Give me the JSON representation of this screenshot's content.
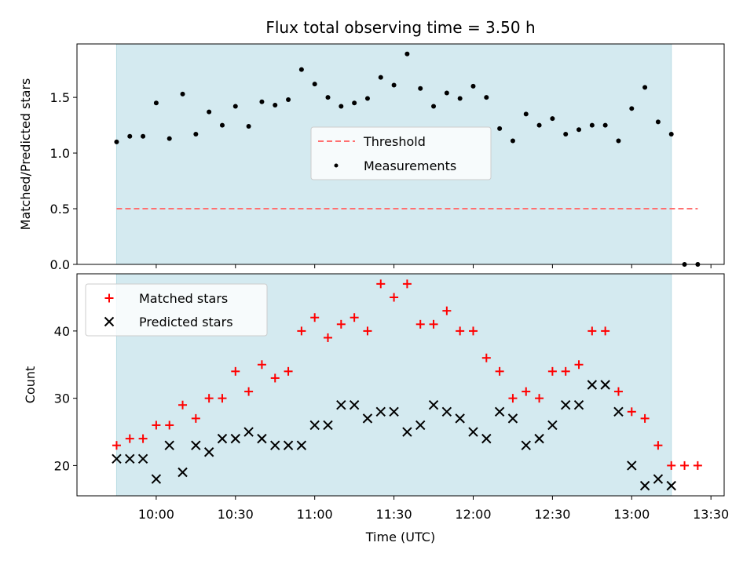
{
  "chart_data": [
    {
      "type": "scatter",
      "title": "Flux total observing time = 3.50 h",
      "ylabel": "Matched/Predicted stars",
      "xlabel": "",
      "ylim": [
        0,
        1.98
      ],
      "yticks": [
        "0.0",
        "0.5",
        "1.0",
        "1.5"
      ],
      "yticks_values": [
        0,
        0.5,
        1.0,
        1.5
      ],
      "grid": false,
      "legend_position": "center",
      "shaded_span": {
        "from": "09:45",
        "to": "13:15",
        "color": "#d4eaf0"
      },
      "series": [
        {
          "name": "Threshold",
          "kind": "dashed-line",
          "color": "#ff7070",
          "x": [
            "09:45",
            "13:25"
          ],
          "y": [
            0.5,
            0.5
          ]
        },
        {
          "name": "Measurements",
          "kind": "points",
          "color": "#000000",
          "x": [
            "09:45",
            "09:50",
            "09:55",
            "10:00",
            "10:05",
            "10:10",
            "10:15",
            "10:20",
            "10:25",
            "10:30",
            "10:35",
            "10:40",
            "10:45",
            "10:50",
            "10:55",
            "11:00",
            "11:05",
            "11:10",
            "11:15",
            "11:20",
            "11:25",
            "11:30",
            "11:35",
            "11:40",
            "11:45",
            "11:50",
            "11:55",
            "12:00",
            "12:05",
            "12:10",
            "12:15",
            "12:20",
            "12:25",
            "12:30",
            "12:35",
            "12:40",
            "12:45",
            "12:50",
            "12:55",
            "13:00",
            "13:05",
            "13:10",
            "13:15",
            "13:20",
            "13:25"
          ],
          "y": [
            1.1,
            1.15,
            1.15,
            1.45,
            1.13,
            1.53,
            1.17,
            1.37,
            1.25,
            1.42,
            1.24,
            1.46,
            1.43,
            1.48,
            1.75,
            1.62,
            1.5,
            1.42,
            1.45,
            1.49,
            1.68,
            1.61,
            1.89,
            1.58,
            1.42,
            1.54,
            1.49,
            1.6,
            1.5,
            1.22,
            1.11,
            1.35,
            1.25,
            1.31,
            1.17,
            1.21,
            1.25,
            1.25,
            1.11,
            1.4,
            1.59,
            1.28,
            1.17,
            0.0,
            0.0
          ]
        }
      ]
    },
    {
      "type": "scatter",
      "title": "",
      "ylabel": "Count",
      "xlabel": "Time (UTC)",
      "ylim": [
        15.5,
        48.5
      ],
      "yticks": [
        "20",
        "30",
        "40"
      ],
      "yticks_values": [
        20,
        30,
        40
      ],
      "xticks": [
        "10:00",
        "10:30",
        "11:00",
        "11:30",
        "12:00",
        "12:30",
        "13:00",
        "13:30"
      ],
      "xlim": [
        "09:30",
        "13:35"
      ],
      "grid": false,
      "legend_position": "upper left",
      "shaded_span": {
        "from": "09:45",
        "to": "13:15",
        "color": "#d4eaf0"
      },
      "series": [
        {
          "name": "Matched stars",
          "marker": "+",
          "color": "#ff0000",
          "x": [
            "09:45",
            "09:50",
            "09:55",
            "10:00",
            "10:05",
            "10:10",
            "10:15",
            "10:20",
            "10:25",
            "10:30",
            "10:35",
            "10:40",
            "10:45",
            "10:50",
            "10:55",
            "11:00",
            "11:05",
            "11:10",
            "11:15",
            "11:20",
            "11:25",
            "11:30",
            "11:35",
            "11:40",
            "11:45",
            "11:50",
            "11:55",
            "12:00",
            "12:05",
            "12:10",
            "12:15",
            "12:20",
            "12:25",
            "12:30",
            "12:35",
            "12:40",
            "12:45",
            "12:50",
            "12:55",
            "13:00",
            "13:05",
            "13:10",
            "13:15",
            "13:20",
            "13:25"
          ],
          "y": [
            23,
            24,
            24,
            26,
            26,
            29,
            27,
            30,
            30,
            34,
            31,
            35,
            33,
            34,
            40,
            42,
            39,
            41,
            42,
            40,
            47,
            45,
            47,
            41,
            41,
            43,
            40,
            40,
            36,
            34,
            30,
            31,
            30,
            34,
            34,
            35,
            40,
            40,
            31,
            28,
            27,
            23,
            20,
            20,
            20
          ]
        },
        {
          "name": "Predicted stars",
          "marker": "x",
          "color": "#000000",
          "x": [
            "09:45",
            "09:50",
            "09:55",
            "10:00",
            "10:05",
            "10:10",
            "10:15",
            "10:20",
            "10:25",
            "10:30",
            "10:35",
            "10:40",
            "10:45",
            "10:50",
            "10:55",
            "11:00",
            "11:05",
            "11:10",
            "11:15",
            "11:20",
            "11:25",
            "11:30",
            "11:35",
            "11:40",
            "11:45",
            "11:50",
            "11:55",
            "12:00",
            "12:05",
            "12:10",
            "12:15",
            "12:20",
            "12:25",
            "12:30",
            "12:35",
            "12:40",
            "12:45",
            "12:50",
            "12:55",
            "13:00",
            "13:05",
            "13:10",
            "13:15"
          ],
          "y": [
            21,
            21,
            21,
            18,
            23,
            19,
            23,
            22,
            24,
            24,
            25,
            24,
            23,
            23,
            23,
            26,
            26,
            29,
            29,
            27,
            28,
            28,
            25,
            26,
            29,
            28,
            27,
            25,
            24,
            28,
            27,
            23,
            24,
            26,
            29,
            29,
            32,
            32,
            28,
            20,
            17,
            18,
            17
          ]
        }
      ]
    }
  ]
}
